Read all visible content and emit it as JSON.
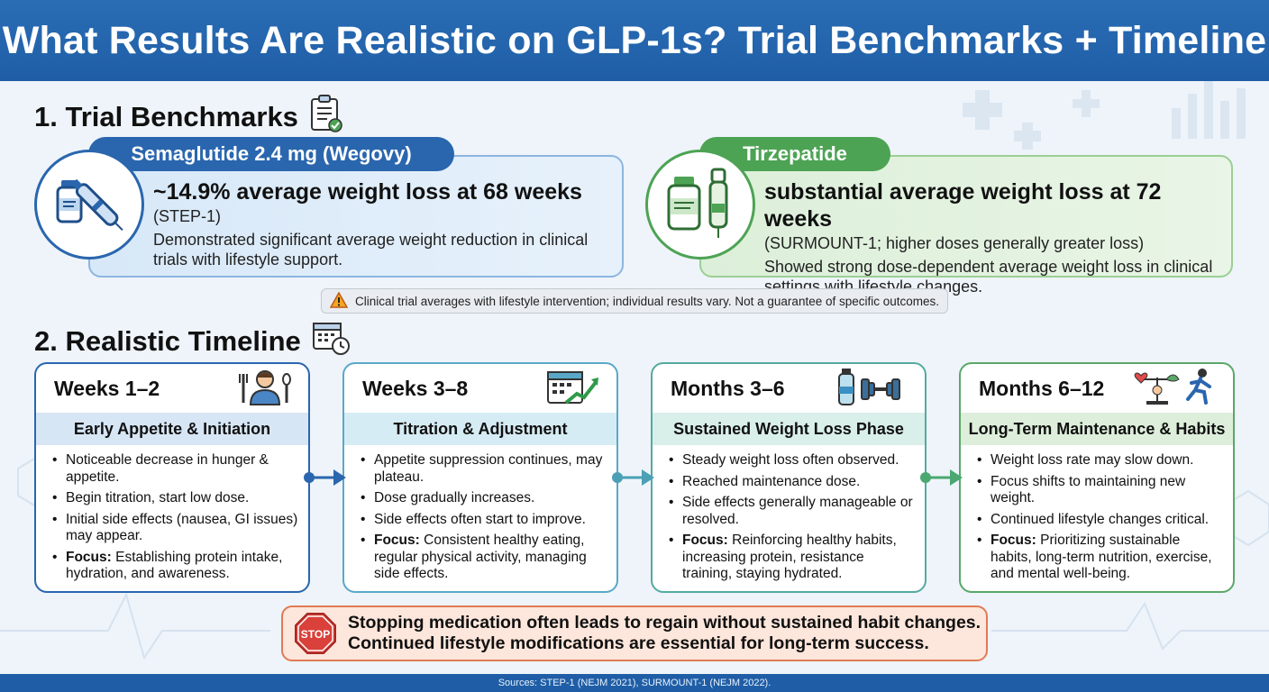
{
  "title": "What Results Are Realistic on GLP-1s? Trial Benchmarks + Timeline",
  "section1": {
    "title": "1. Trial Benchmarks"
  },
  "section2": {
    "title": "2. Realistic Timeline"
  },
  "benchmarks": [
    {
      "name": "Semaglutide 2.4 mg (Wegovy)",
      "headline": "~14.9% average weight loss at 68 weeks",
      "trial": "(STEP-1)",
      "description": "Demonstrated significant average weight reduction in clinical trials with lifestyle support.",
      "color": "#2a66ae",
      "icon": "vial-and-pen-icon"
    },
    {
      "name": "Tirzepatide",
      "headline": "substantial average weight loss at 72 weeks",
      "trial": "(SURMOUNT-1; higher doses generally greater loss)",
      "description": "Showed strong dose-dependent average weight loss in clinical settings with lifestyle changes.",
      "color": "#4da354",
      "icon": "bottle-and-injector-icon"
    }
  ],
  "disclaimer": "Clinical trial averages with lifestyle intervention; individual results vary. Not a guarantee of specific outcomes.",
  "timeline": [
    {
      "period": "Weeks 1–2",
      "phase": "Early Appetite & Initiation",
      "icon": "person-with-utensils-icon",
      "bullets": [
        "Noticeable decrease in hunger & appetite.",
        "Begin titration, start low dose.",
        "Initial side effects (nausea, GI issues) may appear."
      ],
      "focus_label": "Focus:",
      "focus": "Establishing protein intake, hydration, and awareness."
    },
    {
      "period": "Weeks 3–8",
      "phase": "Titration & Adjustment",
      "icon": "calendar-trend-icon",
      "bullets": [
        "Appetite suppression continues, may plateau.",
        "Dose gradually increases.",
        "Side effects often start to improve."
      ],
      "focus_label": "Focus:",
      "focus": "Consistent healthy eating, regular physical activity, managing side effects."
    },
    {
      "period": "Months 3–6",
      "phase": "Sustained Weight Loss Phase",
      "icon": "water-bottle-dumbbell-icon",
      "bullets": [
        "Steady weight loss often observed.",
        "Reached maintenance dose.",
        "Side effects generally manageable or resolved."
      ],
      "focus_label": "Focus:",
      "focus": "Reinforcing healthy habits, increasing protein, resistance training, staying hydrated."
    },
    {
      "period": "Months 6–12",
      "phase": "Long-Term Maintenance & Habits",
      "icon": "balance-runner-icon",
      "bullets": [
        "Weight loss rate may slow down.",
        "Focus shifts to maintaining new weight.",
        "Continued lifestyle changes critical."
      ],
      "focus_label": "Focus:",
      "focus": "Prioritizing sustainable habits, long-term nutrition, exercise, and mental well-being."
    }
  ],
  "stop_notice": {
    "sign": "STOP",
    "line1": "Stopping medication often leads to regain without sustained habit changes.",
    "line2": "Continued lifestyle modifications are essential for long-term success."
  },
  "sources": "Sources: STEP-1 (NEJM 2021), SURMOUNT-1 (NEJM 2022)."
}
